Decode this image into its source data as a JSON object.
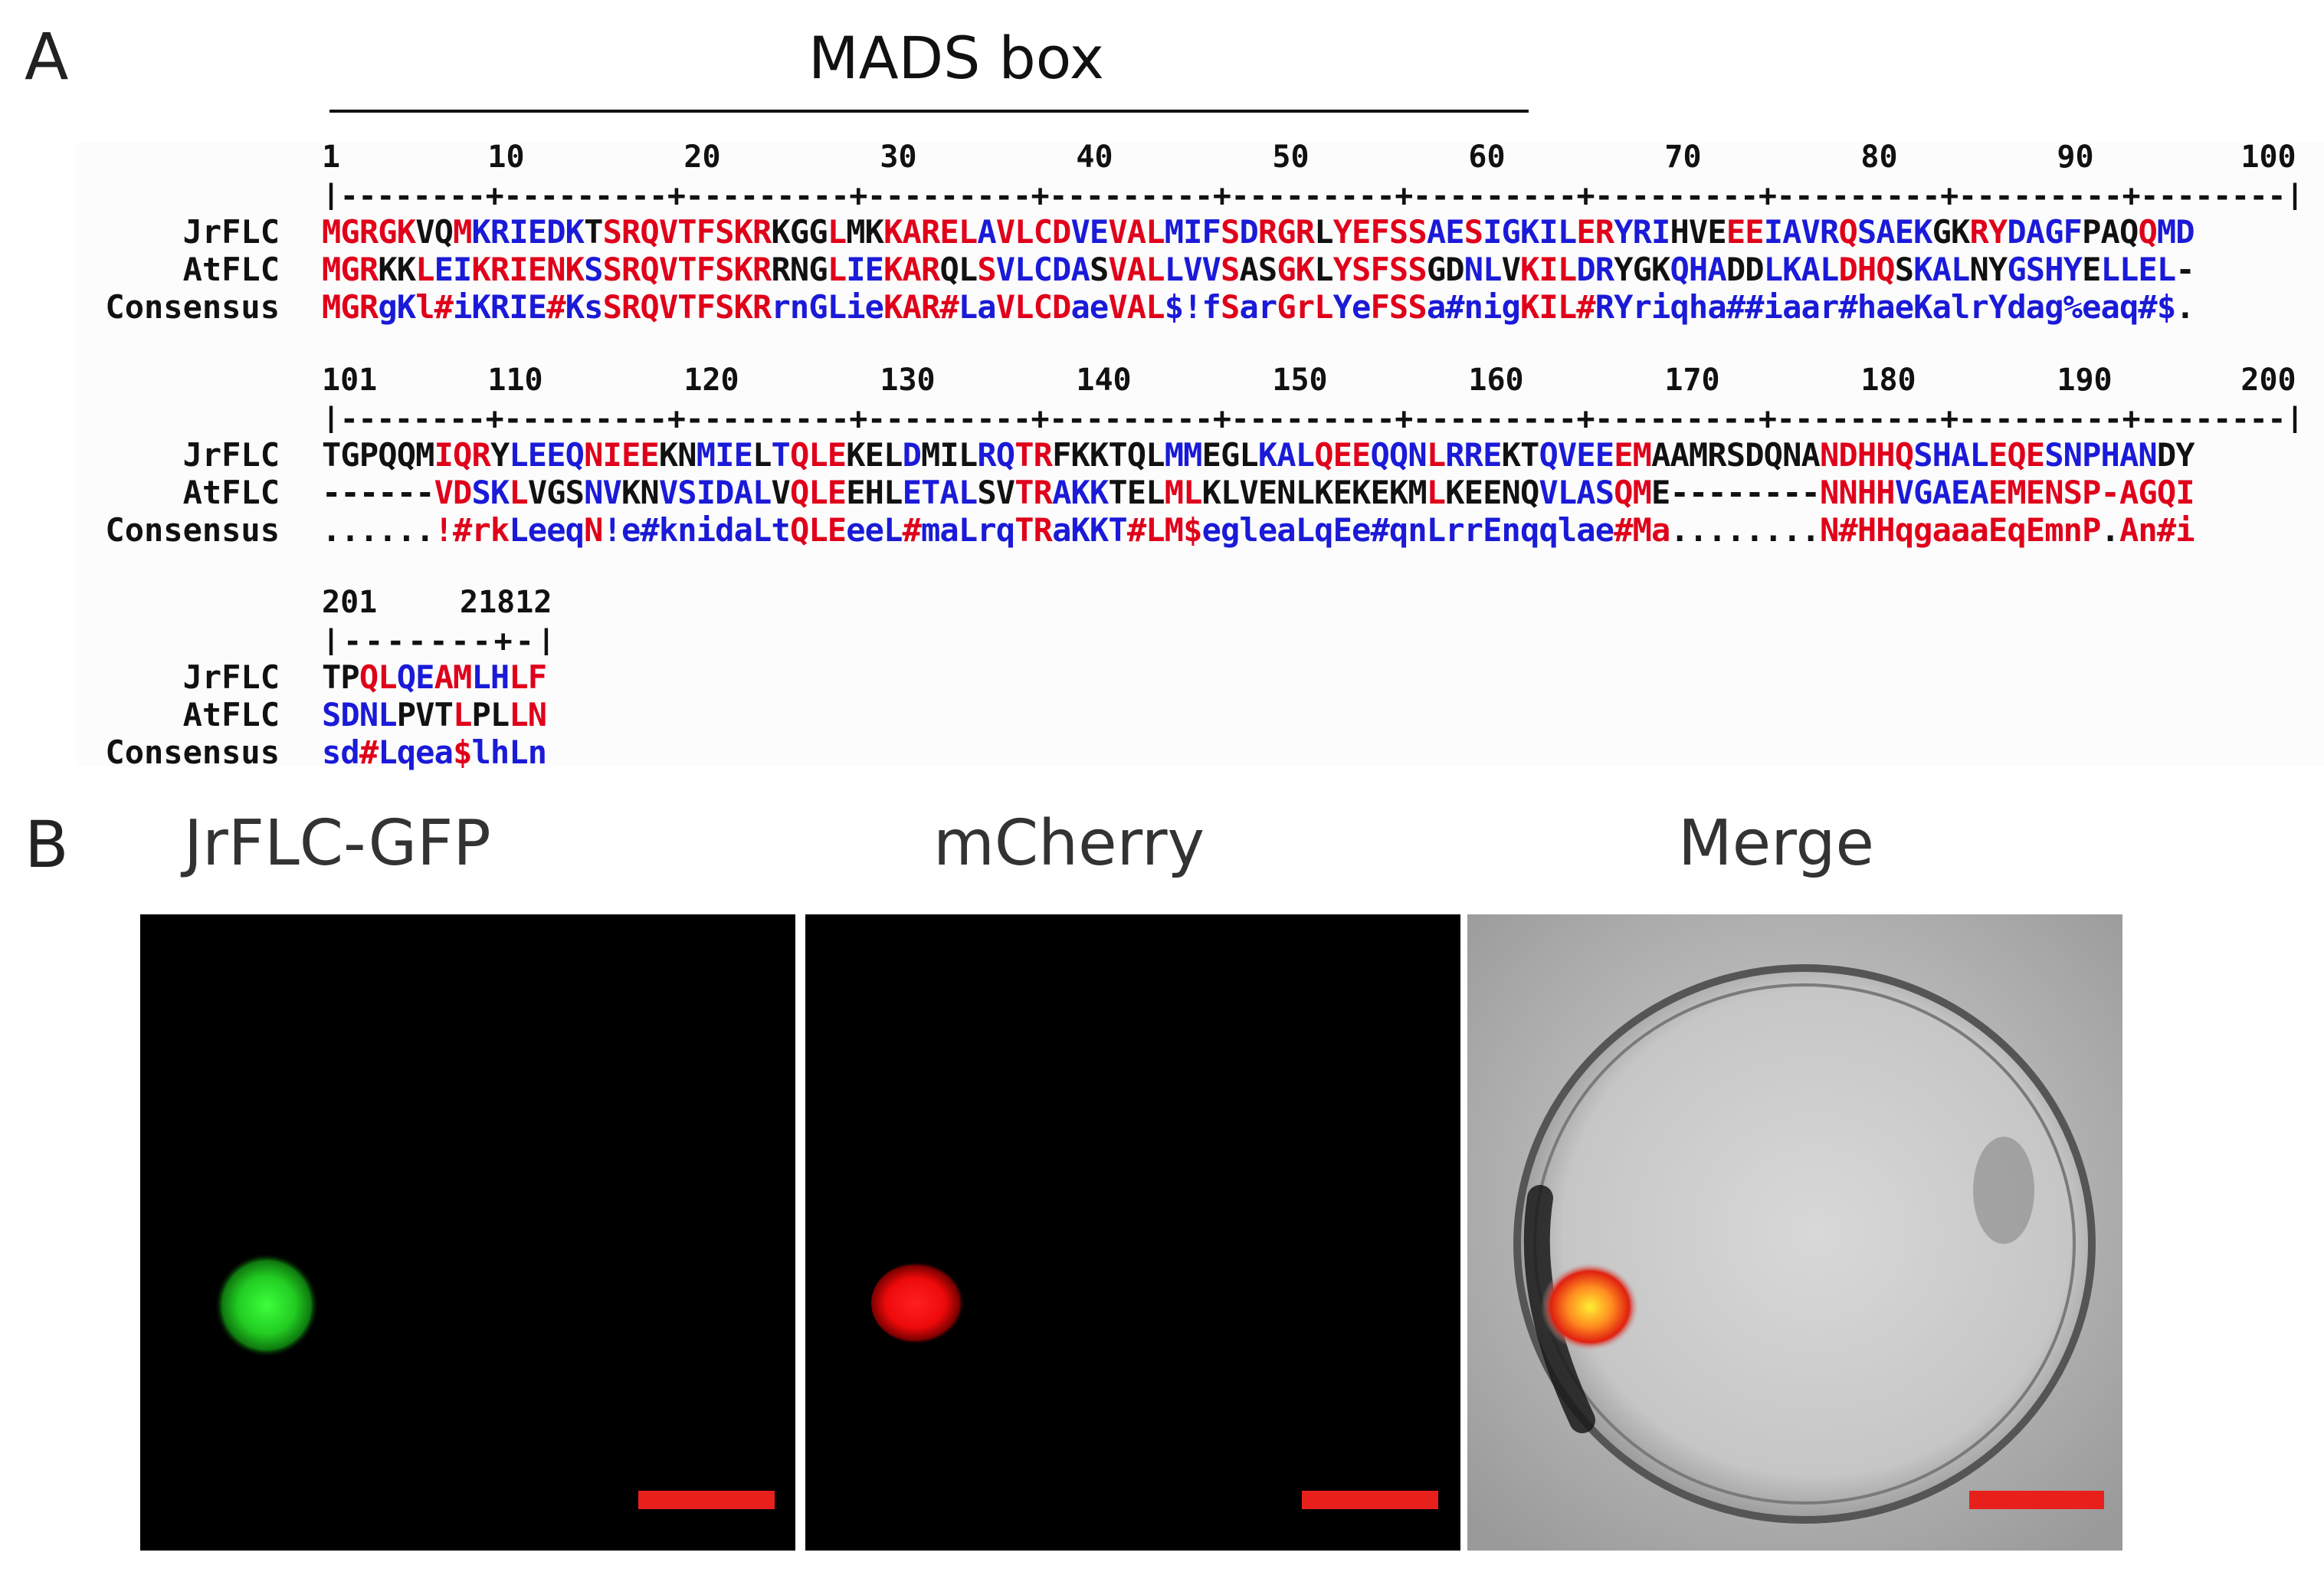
{
  "panel_a": {
    "letter": "A",
    "domain_label": "MADS box",
    "row_labels": [
      "JrFLC",
      "AtFLC",
      "Consensus"
    ],
    "blocks": [
      {
        "numbers": [
          "1",
          "10",
          "20",
          "30",
          "40",
          "50",
          "60",
          "70",
          "80",
          "90",
          "100"
        ],
        "ruler": "|--------+---------+---------+---------+---------+---------+---------+---------+---------+---------+--------|",
        "seqs": [
          [
            [
              "r",
              "MGRGK"
            ],
            [
              "k",
              "VQ"
            ],
            [
              "r",
              "M"
            ],
            [
              "b",
              "KRIEDK"
            ],
            [
              "k",
              "T"
            ],
            [
              "r",
              "SRQVTFSKR"
            ],
            [
              "k",
              "KGG"
            ],
            [
              "r",
              "L"
            ],
            [
              "k",
              "MK"
            ],
            [
              "r",
              "KAREL"
            ],
            [
              "b",
              "A"
            ],
            [
              "r",
              "VLCD"
            ],
            [
              "b",
              "VE"
            ],
            [
              "r",
              "VAL"
            ],
            [
              "b",
              "MIF"
            ],
            [
              "r",
              "S"
            ],
            [
              "b",
              "D"
            ],
            [
              "r",
              "RGR"
            ],
            [
              "k",
              "L"
            ],
            [
              "r",
              "YEFSS"
            ],
            [
              "b",
              "AE"
            ],
            [
              "r",
              "S"
            ],
            [
              "b",
              "IGKIL"
            ],
            [
              "r",
              "ER"
            ],
            [
              "b",
              "YRI"
            ],
            [
              "k",
              "HVE"
            ],
            [
              "r",
              "EE"
            ],
            [
              "b",
              "IAVR"
            ],
            [
              "r",
              "Q"
            ],
            [
              "b",
              "SAEK"
            ],
            [
              "k",
              "GK"
            ],
            [
              "r",
              "RY"
            ],
            [
              "b",
              "DAGF"
            ],
            [
              "k",
              "PAQ"
            ],
            [
              "r",
              "Q"
            ],
            [
              "b",
              "MD"
            ]
          ],
          [
            [
              "r",
              "MGR"
            ],
            [
              "k",
              "KK"
            ],
            [
              "r",
              "L"
            ],
            [
              "b",
              "EI"
            ],
            [
              "r",
              "KRIENK"
            ],
            [
              "b",
              "S"
            ],
            [
              "r",
              "SRQVTFSKR"
            ],
            [
              "k",
              "RNG"
            ],
            [
              "r",
              "L"
            ],
            [
              "b",
              "IE"
            ],
            [
              "r",
              "KAR"
            ],
            [
              "k",
              "QL"
            ],
            [
              "r",
              "S"
            ],
            [
              "b",
              "VLCDA"
            ],
            [
              "k",
              "S"
            ],
            [
              "r",
              "VAL"
            ],
            [
              "b",
              "LVV"
            ],
            [
              "r",
              "S"
            ],
            [
              "k",
              "AS"
            ],
            [
              "r",
              "GK"
            ],
            [
              "k",
              "L"
            ],
            [
              "r",
              "YSFSS"
            ],
            [
              "k",
              "GD"
            ],
            [
              "b",
              "NL"
            ],
            [
              "k",
              "V"
            ],
            [
              "r",
              "KIL"
            ],
            [
              "b",
              "DR"
            ],
            [
              "k",
              "YGK"
            ],
            [
              "b",
              "QHA"
            ],
            [
              "k",
              "DD"
            ],
            [
              "b",
              "LKAL"
            ],
            [
              "r",
              "DHQ"
            ],
            [
              "k",
              "S"
            ],
            [
              "b",
              "KAL"
            ],
            [
              "k",
              "NY"
            ],
            [
              "b",
              "GSHY"
            ],
            [
              "k",
              "E"
            ],
            [
              "b",
              "LLEL"
            ],
            [
              "k",
              "-"
            ]
          ],
          [
            [
              "r",
              "MGR"
            ],
            [
              "b",
              "gK"
            ],
            [
              "r",
              "l#"
            ],
            [
              "b",
              "iKRIE"
            ],
            [
              "r",
              "#"
            ],
            [
              "b",
              "Ks"
            ],
            [
              "r",
              "SRQVTFSKR"
            ],
            [
              "b",
              "rnGL"
            ],
            [
              "b",
              "ie"
            ],
            [
              "r",
              "KAR#"
            ],
            [
              "b",
              "La"
            ],
            [
              "r",
              "VLCD"
            ],
            [
              "b",
              "ae"
            ],
            [
              "r",
              "VAL"
            ],
            [
              "b",
              "$!f"
            ],
            [
              "r",
              "S"
            ],
            [
              "b",
              "ar"
            ],
            [
              "r",
              "GrL"
            ],
            [
              "b",
              "Ye"
            ],
            [
              "r",
              "FSS"
            ],
            [
              "b",
              "a#nig"
            ],
            [
              "r",
              "KIL#"
            ],
            [
              "b",
              "RY"
            ],
            [
              "b",
              "riqha##iaar#haeKalrYdag%eaq#$"
            ],
            [
              "k",
              "."
            ]
          ]
        ]
      },
      {
        "numbers": [
          "101",
          "110",
          "120",
          "130",
          "140",
          "150",
          "160",
          "170",
          "180",
          "190",
          "200"
        ],
        "ruler": "|--------+---------+---------+---------+---------+---------+---------+---------+---------+---------+--------|",
        "seqs": [
          [
            [
              "k",
              "TGPQQM"
            ],
            [
              "r",
              "IQR"
            ],
            [
              "k",
              "Y"
            ],
            [
              "b",
              "LEEQ"
            ],
            [
              "r",
              "NIEE"
            ],
            [
              "k",
              "KN"
            ],
            [
              "b",
              "MIE"
            ],
            [
              "k",
              "L"
            ],
            [
              "b",
              "T"
            ],
            [
              "r",
              "QLE"
            ],
            [
              "k",
              "KEL"
            ],
            [
              "b",
              "D"
            ],
            [
              "k",
              "MIL"
            ],
            [
              "b",
              "RQ"
            ],
            [
              "r",
              "TR"
            ],
            [
              "k",
              "FKKTQL"
            ],
            [
              "b",
              "MM"
            ],
            [
              "k",
              "EGL"
            ],
            [
              "b",
              "KAL"
            ],
            [
              "r",
              "QEE"
            ],
            [
              "b",
              "QQN"
            ],
            [
              "r",
              "L"
            ],
            [
              "b",
              "RRE"
            ],
            [
              "k",
              "KT"
            ],
            [
              "b",
              "QVEE"
            ],
            [
              "r",
              "EM"
            ],
            [
              "k",
              "AAMRSDQNA"
            ],
            [
              "r",
              "NDHHQ"
            ],
            [
              "b",
              "SHAL"
            ],
            [
              "r",
              "EQE"
            ],
            [
              "b",
              "SNPHAN"
            ],
            [
              "k",
              "DY"
            ]
          ],
          [
            [
              "k",
              "------"
            ],
            [
              "r",
              "VD"
            ],
            [
              "b",
              "SK"
            ],
            [
              "r",
              "L"
            ],
            [
              "k",
              "VGS"
            ],
            [
              "b",
              "NV"
            ],
            [
              "k",
              "KN"
            ],
            [
              "b",
              "VSIDAL"
            ],
            [
              "k",
              "V"
            ],
            [
              "r",
              "QLE"
            ],
            [
              "k",
              "EHL"
            ],
            [
              "b",
              "ETAL"
            ],
            [
              "k",
              "SV"
            ],
            [
              "r",
              "TR"
            ],
            [
              "b",
              "AKK"
            ],
            [
              "k",
              "TEL"
            ],
            [
              "r",
              "ML"
            ],
            [
              "k",
              "KLVENLKEKEKM"
            ],
            [
              "r",
              "L"
            ],
            [
              "k",
              "KEENQ"
            ],
            [
              "b",
              "VLAS"
            ],
            [
              "r",
              "QM"
            ],
            [
              "k",
              "E--------"
            ],
            [
              "r",
              "NNHH"
            ],
            [
              "b",
              "VGAEA"
            ],
            [
              "r",
              "EMENSP-AGQI"
            ]
          ],
          [
            [
              "k",
              "......"
            ],
            [
              "r",
              "!#rk"
            ],
            [
              "b",
              "Leeq"
            ],
            [
              "r",
              "N"
            ],
            [
              "b",
              "!e#"
            ],
            [
              "b",
              "knidaLt"
            ],
            [
              "r",
              "QLE"
            ],
            [
              "b",
              "eeL"
            ],
            [
              "r",
              "#"
            ],
            [
              "b",
              "maLrq"
            ],
            [
              "r",
              "TR"
            ],
            [
              "b",
              "aKKT"
            ],
            [
              "r",
              "#LM$"
            ],
            [
              "b",
              "egleaLqEe#qnLrrEnqqlae"
            ],
            [
              "r",
              "#Ma"
            ],
            [
              "k",
              "........"
            ],
            [
              "r",
              "N#HHqgaaaEqEmnP"
            ],
            [
              "k",
              "."
            ],
            [
              "r",
              "An#i"
            ]
          ]
        ]
      },
      {
        "numbers": [
          "201",
          "21812"
        ],
        "ruler": "|-------+-|",
        "seqs": [
          [
            [
              "k",
              "TP"
            ],
            [
              "r",
              "QL"
            ],
            [
              "b",
              "QE"
            ],
            [
              "r",
              "AM"
            ],
            [
              "b",
              "LH"
            ],
            [
              "r",
              "LF"
            ]
          ],
          [
            [
              "b",
              "SDNL"
            ],
            [
              "k",
              "PVT"
            ],
            [
              "r",
              "L"
            ],
            [
              "k",
              "PL"
            ],
            [
              "r",
              "LN"
            ]
          ],
          [
            [
              "b",
              "sd"
            ],
            [
              "r",
              "#"
            ],
            [
              "b",
              "Lqea"
            ],
            [
              "r",
              "$"
            ],
            [
              "b",
              "lhLn"
            ]
          ]
        ]
      }
    ]
  },
  "panel_b": {
    "letter": "B",
    "channels": [
      "JrFLC-GFP",
      "mCherry",
      "Merge"
    ],
    "colors": {
      "gfp": "#22dd22",
      "mcherry": "#ff1a1a",
      "scale_bar": "#e8201c",
      "background": "#000000"
    }
  }
}
